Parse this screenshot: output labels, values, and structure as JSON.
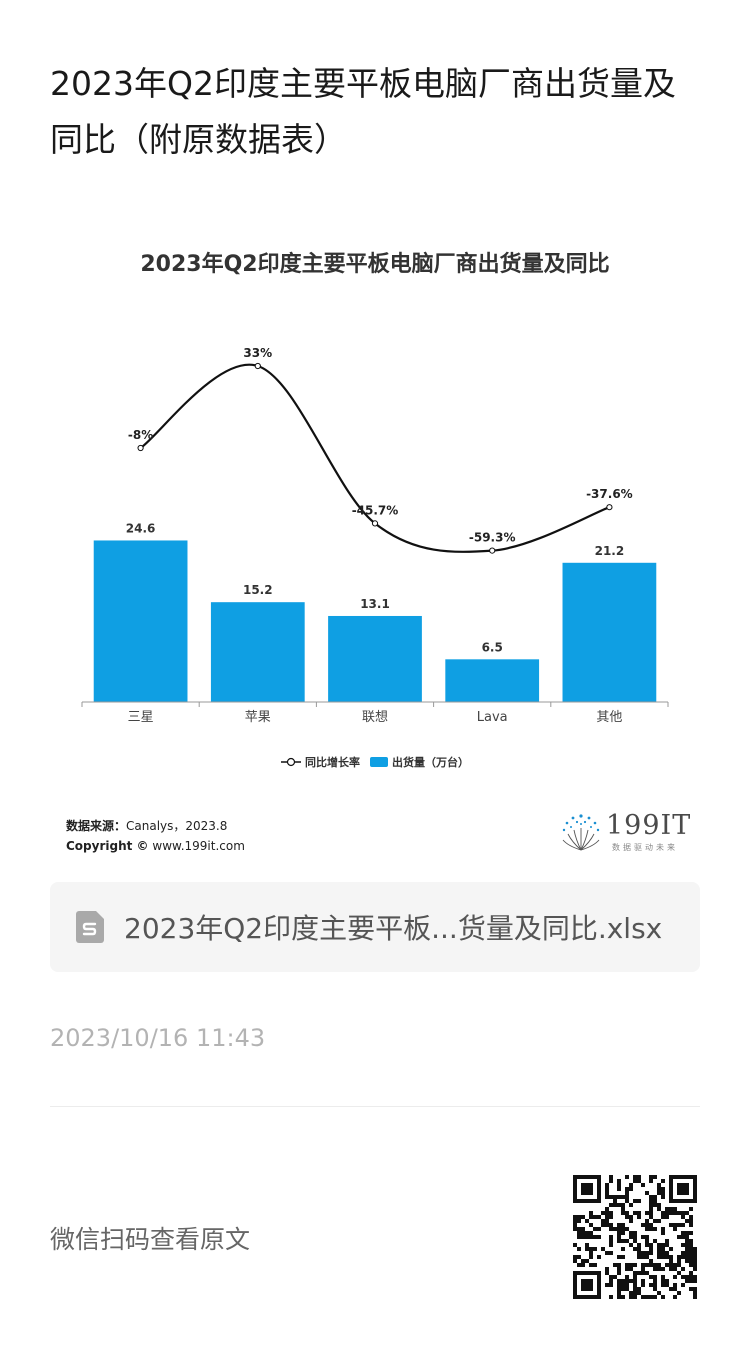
{
  "article": {
    "title": "2023年Q2印度主要平板电脑厂商出货量及同比（附原数据表）"
  },
  "chart_data": {
    "type": "bar",
    "title": "2023年Q2印度主要平板电脑厂商出货量及同比",
    "categories": [
      "三星",
      "苹果",
      "联想",
      "Lava",
      "其他"
    ],
    "series": [
      {
        "name": "出货量（万台）",
        "type": "bar",
        "color": "#0f9fe3",
        "values": [
          24.6,
          15.2,
          13.1,
          6.5,
          21.2
        ],
        "labels": [
          "24.6",
          "15.2",
          "13.1",
          "6.5",
          "21.2"
        ]
      },
      {
        "name": "同比增长率",
        "type": "line",
        "color": "#111111",
        "values": [
          -8,
          33,
          -45.7,
          -59.3,
          -37.6
        ],
        "labels": [
          "-8%",
          "33%",
          "-45.7%",
          "-59.3%",
          "-37.6%"
        ]
      }
    ],
    "bar_ylim": [
      0,
      30
    ],
    "line_ylim": [
      -70,
      40
    ],
    "grid": false,
    "legend_position": "bottom"
  },
  "source": {
    "label": "数据来源：",
    "text": "Canalys，2023.8",
    "copyright_label": "Copyright ©",
    "copyright_text": "www.199it.com"
  },
  "brand": {
    "name": "199IT",
    "tagline": "数据驱动未来",
    "accent": "#1a8fd1"
  },
  "file": {
    "name": "2023年Q2印度主要平板...货量及同比.xlsx",
    "icon": "spreadsheet-file-icon"
  },
  "meta": {
    "timestamp": "2023/10/16 11:43"
  },
  "footer": {
    "scan_text": "微信扫码查看原文"
  }
}
